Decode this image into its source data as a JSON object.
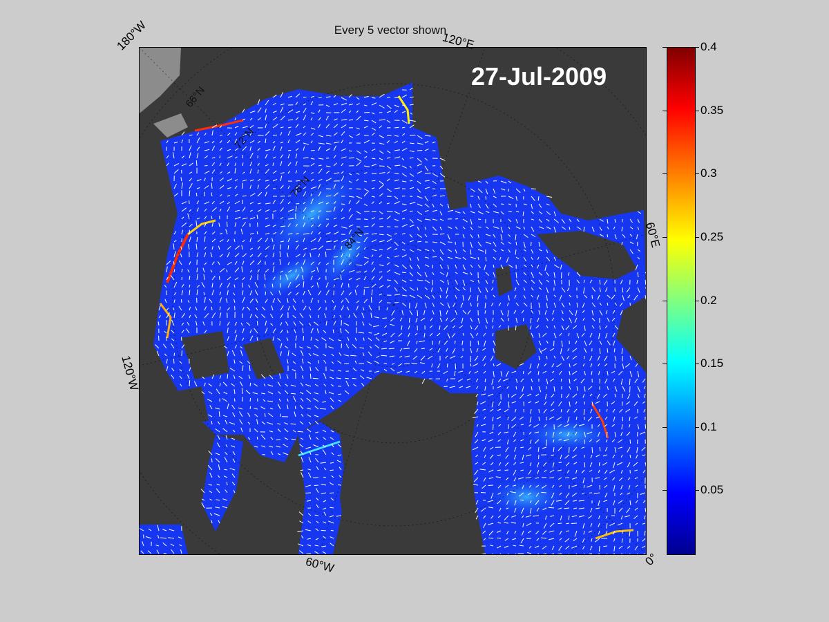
{
  "title": "Every 5 vector shown",
  "date": "27-Jul-2009",
  "longitude_labels": [
    "180°W",
    "120°E",
    "60°E",
    "0°",
    "60°W",
    "120°W"
  ],
  "latitude_labels": [
    "66°N",
    "72°N",
    "78°N",
    "84°N"
  ],
  "colorbar": {
    "min": 0,
    "max": 0.4,
    "ticks": [
      "0.4",
      "0.35",
      "0.3",
      "0.25",
      "0.2",
      "0.15",
      "0.1",
      "0.05"
    ],
    "colormap": "jet"
  },
  "colors": {
    "background": "#cccccc",
    "land": "#3a3a3a",
    "ice_free_ocean": "#8c8c8c",
    "vector": "#ffffff",
    "low_speed": "#1030f0",
    "high_speed": "#ff2000"
  }
}
